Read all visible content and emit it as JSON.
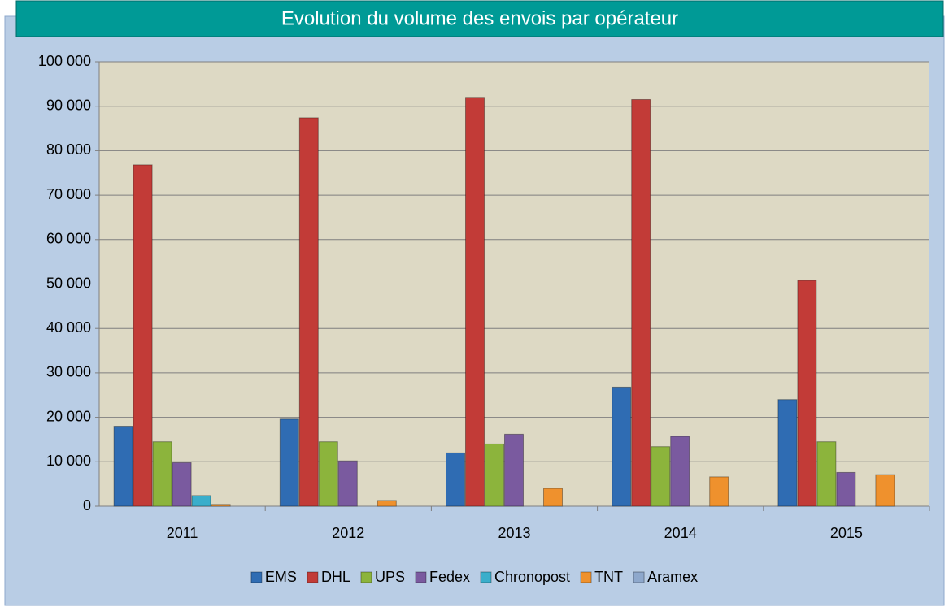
{
  "chart_data": {
    "type": "bar",
    "title": "Evolution du volume des envois par opérateur",
    "categories": [
      "2011",
      "2012",
      "2013",
      "2014",
      "2015"
    ],
    "series": [
      {
        "name": "EMS",
        "color": "#2f6cb3",
        "values": [
          18000,
          19600,
          12000,
          26800,
          24000
        ]
      },
      {
        "name": "DHL",
        "color": "#c23b37",
        "values": [
          76800,
          87400,
          92000,
          91500,
          50800
        ]
      },
      {
        "name": "UPS",
        "color": "#8cb43c",
        "values": [
          14500,
          14500,
          14000,
          13400,
          14500
        ]
      },
      {
        "name": "Fedex",
        "color": "#7a5a9f",
        "values": [
          9800,
          10200,
          16200,
          15700,
          7600
        ]
      },
      {
        "name": "Chronopost",
        "color": "#3aaecb",
        "values": [
          2400,
          0,
          0,
          0,
          0
        ]
      },
      {
        "name": "TNT",
        "color": "#ef912d",
        "values": [
          400,
          1300,
          4000,
          6600,
          7100
        ]
      },
      {
        "name": "Aramex",
        "color": "#8ea8cc",
        "values": [
          0,
          0,
          0,
          0,
          0
        ]
      }
    ],
    "ylim": [
      0,
      100000
    ],
    "yticks": [
      0,
      {
        "value": 10000,
        "label": "10 000"
      },
      {
        "value": 20000,
        "label": "20 000"
      },
      {
        "value": 30000,
        "label": "30 000"
      },
      {
        "value": 40000,
        "label": "40 000"
      },
      {
        "value": 50000,
        "label": "50 000"
      },
      {
        "value": 60000,
        "label": "60 000"
      },
      {
        "value": 70000,
        "label": "70 000"
      },
      {
        "value": 80000,
        "label": "80 000"
      },
      {
        "value": 90000,
        "label": "90 000"
      },
      {
        "value": 100000,
        "label": "100 000"
      }
    ],
    "grid": true,
    "legend": "bottom"
  }
}
